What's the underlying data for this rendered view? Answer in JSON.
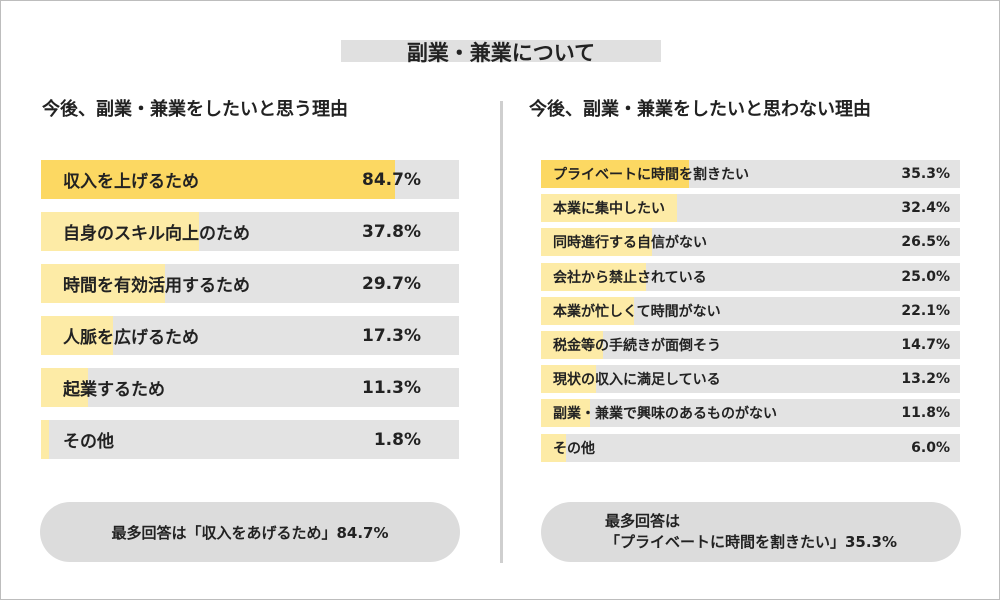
{
  "title": "副業・兼業について",
  "colors": {
    "accent": "#fcd862",
    "accent_light": "#fdeba6",
    "track": "#e3e3e3",
    "pill": "#dcdcdc"
  },
  "left": {
    "title": "今後、副業・兼業をしたいと思う理由",
    "summary": "最多回答は「収入をあげるため」84.7%"
  },
  "right": {
    "title": "今後、副業・兼業をしたいと思わない理由",
    "summary_line1": "最多回答は",
    "summary_line2": "「プライベートに時間を割きたい」35.3%"
  },
  "chart_data": [
    {
      "type": "bar",
      "orientation": "horizontal",
      "title": "今後、副業・兼業をしたいと思う理由",
      "unit": "%",
      "xlim": [
        0,
        100
      ],
      "categories": [
        "収入を上げるため",
        "自身のスキル向上のため",
        "時間を有効活用するため",
        "人脈を広げるため",
        "起業するため",
        "その他"
      ],
      "values": [
        84.7,
        37.8,
        29.7,
        17.3,
        11.3,
        1.8
      ],
      "value_labels": [
        "84.7%",
        "37.8%",
        "29.7%",
        "17.3%",
        "11.3%",
        "1.8%"
      ]
    },
    {
      "type": "bar",
      "orientation": "horizontal",
      "title": "今後、副業・兼業をしたいと思わない理由",
      "unit": "%",
      "xlim": [
        0,
        100
      ],
      "categories": [
        "プライベートに時間を割きたい",
        "本業に集中したい",
        "同時進行する自信がない",
        "会社から禁止されている",
        "本業が忙しくて時間がない",
        "税金等の手続きが面倒そう",
        "現状の収入に満足している",
        "副業・兼業で興味のあるものがない",
        "その他"
      ],
      "values": [
        35.3,
        32.4,
        26.5,
        25.0,
        22.1,
        14.7,
        13.2,
        11.8,
        6.0
      ],
      "value_labels": [
        "35.3%",
        "32.4%",
        "26.5%",
        "25.0%",
        "22.1%",
        "14.7%",
        "13.2%",
        "11.8%",
        "6.0%"
      ]
    }
  ]
}
